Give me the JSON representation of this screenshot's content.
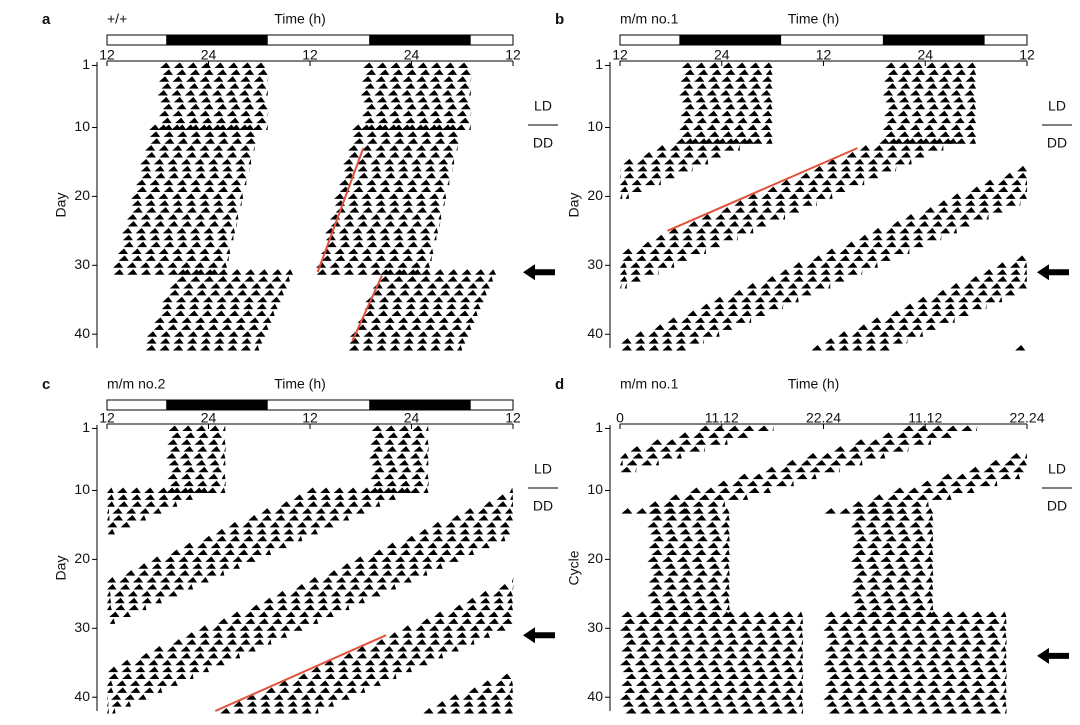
{
  "figure": {
    "panels": [
      {
        "letter": "a",
        "genotype": "+/+",
        "xlabel": "Time (h)",
        "ylabel": "Day",
        "xlim": [
          0,
          48
        ],
        "xticks": [
          {
            "value": 0,
            "label": "12"
          },
          {
            "value": 12,
            "label": "24"
          },
          {
            "value": 24,
            "label": "12"
          },
          {
            "value": 36,
            "label": "24"
          },
          {
            "value": 48,
            "label": "12"
          }
        ],
        "ylim": [
          0.5,
          42
        ],
        "yticks": [
          1,
          10,
          20,
          30,
          40
        ],
        "dark": [
          [
            7,
            19
          ],
          [
            31,
            43
          ]
        ],
        "ld_label": "LD",
        "dd_label": "DD",
        "arrow_day": 31,
        "bands": [
          {
            "days": [
              1,
              10
            ],
            "onset": [
              6,
              6
            ],
            "offset": [
              19,
              19
            ]
          },
          {
            "days": [
              10,
              31
            ],
            "onset": [
              5,
              0.5
            ],
            "offset": [
              18,
              14
            ]
          },
          {
            "days": [
              31,
              42
            ],
            "onset": [
              8,
              4
            ],
            "offset": [
              22,
              18
            ]
          }
        ],
        "fit_lines": [
          [
            [
              24.9,
              31
            ],
            [
              30.3,
              13
            ]
          ],
          [
            [
              29,
              41
            ],
            [
              32.5,
              31.5
            ]
          ]
        ]
      },
      {
        "letter": "b",
        "genotype": "m/m no.1",
        "xlabel": "Time (h)",
        "ylabel": "Day",
        "xlim": [
          0,
          48
        ],
        "xticks": [
          {
            "value": 0,
            "label": "12"
          },
          {
            "value": 12,
            "label": "24"
          },
          {
            "value": 24,
            "label": "12"
          },
          {
            "value": 36,
            "label": "24"
          },
          {
            "value": 48,
            "label": "12"
          }
        ],
        "ylim": [
          0.5,
          42
        ],
        "yticks": [
          1,
          10,
          20,
          30,
          40
        ],
        "dark": [
          [
            7,
            19
          ],
          [
            31,
            43
          ]
        ],
        "ld_label": "LD",
        "dd_label": "DD",
        "arrow_day": 31,
        "bands": [
          {
            "days": [
              1,
              12
            ],
            "onset": [
              7,
              7
            ],
            "offset": [
              18,
              18
            ]
          },
          {
            "days": [
              12,
              42
            ],
            "onset": [
              30,
              -26
            ],
            "offset": [
              40,
              -16
            ]
          }
        ],
        "fit_lines": [
          [
            [
              5.6,
              25
            ],
            [
              28,
              13
            ]
          ]
        ]
      },
      {
        "letter": "c",
        "genotype": "m/m no.2",
        "xlabel": "Time (h)",
        "ylabel": "Day",
        "xlim": [
          0,
          48
        ],
        "xticks": [
          {
            "value": 0,
            "label": "12"
          },
          {
            "value": 12,
            "label": "24"
          },
          {
            "value": 24,
            "label": "12"
          },
          {
            "value": 36,
            "label": "24"
          },
          {
            "value": 48,
            "label": "12"
          }
        ],
        "ylim": [
          0.5,
          42
        ],
        "yticks": [
          1,
          10,
          20,
          30,
          40
        ],
        "dark": [
          [
            7,
            19
          ],
          [
            31,
            43
          ]
        ],
        "ld_label": "LD",
        "dd_label": "DD",
        "arrow_day": 31,
        "bands": [
          {
            "days": [
              1,
              10
            ],
            "onset": [
              7,
              7
            ],
            "offset": [
              14,
              14
            ]
          },
          {
            "days": [
              10,
              42
            ],
            "onset": [
              71.6,
              12.8
            ],
            "offset": [
              84,
              25
            ]
          }
        ],
        "fit_lines": [
          [
            [
              12.8,
              42
            ],
            [
              33,
              31
            ]
          ]
        ]
      },
      {
        "letter": "d",
        "genotype": "m/m no.1",
        "xlabel": "Time (h)",
        "ylabel": "Cycle",
        "xlim": [
          0,
          44.48
        ],
        "xticks": [
          0,
          11.12,
          22.24,
          {
            "value": 33.36,
            "label": "11.12"
          },
          {
            "value": 44.48,
            "label": "22.24"
          }
        ],
        "ylim": [
          0.5,
          42
        ],
        "yticks": [
          1,
          10,
          20,
          30,
          40
        ],
        "ld_label": "LD",
        "dd_label": "DD",
        "arrow_day": 34,
        "bands": [
          {
            "days": [
              1,
              13
            ],
            "onset": [
              30.6,
              0
            ],
            "offset": [
              39,
              9
            ]
          },
          {
            "days": [
              13,
              28
            ],
            "onset": [
              3,
              3
            ],
            "offset": [
              12,
              12
            ]
          },
          {
            "days": [
              28,
              42
            ],
            "onset": [
              0,
              0
            ],
            "offset": [
              20,
              20
            ]
          }
        ],
        "fit_lines": []
      }
    ]
  }
}
